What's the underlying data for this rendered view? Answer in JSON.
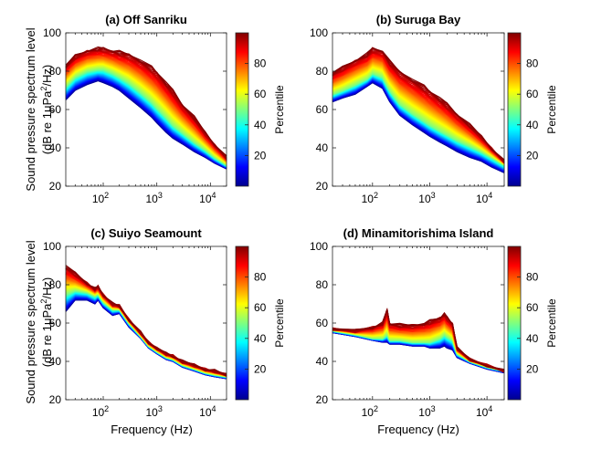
{
  "figure": {
    "ylabel_line1": "Sound pressure spectrum level",
    "ylabel_line2_prefix": "(dB re 1μPa",
    "ylabel_line2_sup": "2",
    "ylabel_line2_suffix": "/Hz)",
    "xlabel": "Frequency (Hz)",
    "colorbar_label": "Percentile",
    "colorbar_ticks": [
      "20",
      "40",
      "60",
      "80"
    ],
    "colors": {
      "colormap": "jet",
      "low": "#00008f",
      "mid": "#7fff7f",
      "high": "#800000"
    }
  },
  "chart_data": [
    {
      "type": "line",
      "title": "(a) Off Sanriku",
      "xscale": "log",
      "xlim": [
        20,
        20000
      ],
      "ylim": [
        20,
        100
      ],
      "yticks": [
        "20",
        "40",
        "60",
        "80",
        "100"
      ],
      "xticks": [
        "10^2",
        "10^3",
        "10^4"
      ],
      "x": [
        20,
        30,
        50,
        80,
        100,
        150,
        200,
        300,
        500,
        800,
        1000,
        1500,
        2000,
        3000,
        5000,
        8000,
        12000,
        20000
      ],
      "series": [
        {
          "percentile": 1,
          "values": [
            65,
            70,
            73,
            75,
            74,
            72,
            70,
            66,
            61,
            56,
            53,
            48,
            45,
            42,
            38,
            35,
            32,
            29
          ]
        },
        {
          "percentile": 50,
          "values": [
            72,
            77,
            80,
            81,
            81,
            79,
            77,
            74,
            69,
            64,
            61,
            56,
            52,
            48,
            43,
            39,
            35,
            31
          ]
        },
        {
          "percentile": 99,
          "values": [
            83,
            88,
            91,
            92,
            92,
            91,
            90,
            89,
            86,
            82,
            80,
            74,
            70,
            63,
            56,
            48,
            42,
            35
          ]
        }
      ]
    },
    {
      "type": "line",
      "title": "(b) Suruga Bay",
      "xscale": "log",
      "xlim": [
        20,
        20000
      ],
      "ylim": [
        20,
        100
      ],
      "yticks": [
        "20",
        "40",
        "60",
        "80",
        "100"
      ],
      "xticks": [
        "10^2",
        "10^3",
        "10^4"
      ],
      "x": [
        20,
        30,
        50,
        80,
        100,
        150,
        200,
        300,
        500,
        800,
        1000,
        1500,
        2000,
        3000,
        5000,
        8000,
        12000,
        20000
      ],
      "series": [
        {
          "percentile": 1,
          "values": [
            64,
            66,
            68,
            72,
            74,
            71,
            64,
            57,
            52,
            48,
            46,
            43,
            41,
            38,
            35,
            33,
            30,
            27
          ]
        },
        {
          "percentile": 50,
          "values": [
            68,
            70,
            73,
            76,
            79,
            77,
            70,
            63,
            58,
            54,
            52,
            49,
            47,
            44,
            41,
            38,
            35,
            31
          ]
        },
        {
          "percentile": 99,
          "values": [
            79,
            82,
            86,
            89,
            92,
            91,
            85,
            80,
            76,
            72,
            70,
            66,
            63,
            58,
            52,
            46,
            40,
            33
          ]
        }
      ]
    },
    {
      "type": "line",
      "title": "(c) Suiyo Seamount",
      "xscale": "log",
      "xlim": [
        20,
        20000
      ],
      "ylim": [
        20,
        100
      ],
      "yticks": [
        "20",
        "40",
        "60",
        "80",
        "100"
      ],
      "xticks": [
        "10^2",
        "10^3",
        "10^4"
      ],
      "x": [
        20,
        30,
        50,
        70,
        80,
        100,
        150,
        200,
        300,
        500,
        700,
        1000,
        1500,
        2000,
        3000,
        5000,
        8000,
        12000,
        20000
      ],
      "series": [
        {
          "percentile": 1,
          "values": [
            66,
            72,
            72,
            70,
            72,
            68,
            64,
            65,
            58,
            52,
            47,
            44,
            41,
            40,
            37,
            35,
            33,
            32,
            31
          ]
        },
        {
          "percentile": 50,
          "values": [
            75,
            77,
            76,
            74,
            75,
            71,
            67,
            67,
            60,
            53,
            48,
            45,
            42,
            41,
            38,
            36,
            34,
            33,
            32
          ]
        },
        {
          "percentile": 99,
          "values": [
            90,
            86,
            81,
            78,
            79,
            75,
            70,
            69,
            62,
            55,
            50,
            47,
            44,
            43,
            40,
            38,
            36,
            35,
            33
          ]
        }
      ]
    },
    {
      "type": "line",
      "title": "(d) Minamitorishima Island",
      "xscale": "log",
      "xlim": [
        20,
        20000
      ],
      "ylim": [
        20,
        100
      ],
      "yticks": [
        "20",
        "40",
        "60",
        "80",
        "100"
      ],
      "xticks": [
        "10^2",
        "10^3",
        "10^4"
      ],
      "x": [
        20,
        50,
        100,
        150,
        180,
        200,
        300,
        500,
        800,
        1000,
        1500,
        1800,
        2000,
        2500,
        3000,
        5000,
        10000,
        20000
      ],
      "series": [
        {
          "percentile": 1,
          "values": [
            55,
            53,
            51,
            50,
            50,
            49,
            49,
            48,
            48,
            47,
            47,
            48,
            47,
            46,
            42,
            39,
            36,
            34
          ]
        },
        {
          "percentile": 50,
          "values": [
            56,
            54,
            52,
            52,
            54,
            51,
            51,
            50,
            50,
            50,
            52,
            54,
            53,
            51,
            44,
            40,
            37,
            35
          ]
        },
        {
          "percentile": 99,
          "values": [
            57,
            56,
            58,
            60,
            67,
            60,
            59,
            59,
            60,
            61,
            63,
            65,
            63,
            60,
            47,
            41,
            38,
            35
          ]
        }
      ]
    }
  ]
}
